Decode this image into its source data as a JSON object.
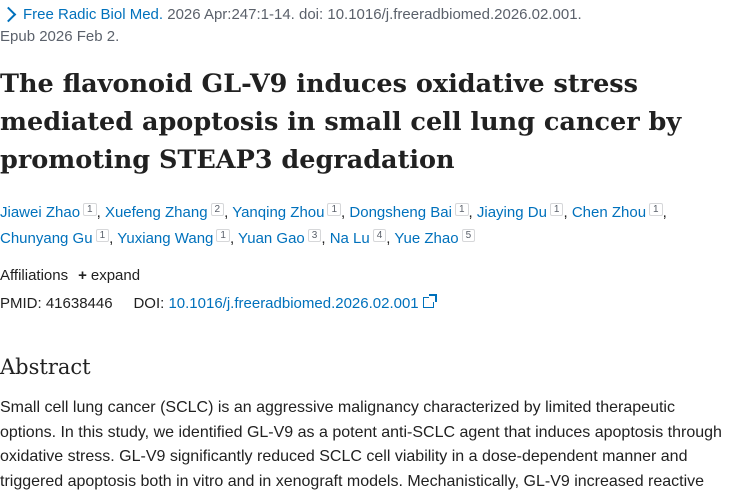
{
  "citation": {
    "journal": "Free Radic Biol Med.",
    "line1_rest": " 2026 Apr:247:1-14. doi: 10.1016/j.freeradbiomed.2026.02.001.",
    "line2": "Epub 2026 Feb 2."
  },
  "title": {
    "line1": "The flavonoid GL-V9 induces oxidative stress",
    "line2": "mediated apoptosis in small cell lung cancer by",
    "line3": "promoting STEAP3 degradation"
  },
  "authors": [
    {
      "name": "Jiawei Zhao",
      "aff": "1"
    },
    {
      "name": "Xuefeng Zhang",
      "aff": "2"
    },
    {
      "name": "Yanqing Zhou",
      "aff": "1"
    },
    {
      "name": "Dongsheng Bai",
      "aff": "1"
    },
    {
      "name": "Jiaying Du",
      "aff": "1"
    },
    {
      "name": "Chen Zhou",
      "aff": "1"
    },
    {
      "name": "Chunyang Gu",
      "aff": "1"
    },
    {
      "name": "Yuxiang Wang",
      "aff": "1"
    },
    {
      "name": "Yuan Gao",
      "aff": "3"
    },
    {
      "name": "Na Lu",
      "aff": "4"
    },
    {
      "name": "Yue Zhao",
      "aff": "5"
    }
  ],
  "affiliations": {
    "label": "Affiliations",
    "expand_label": "expand"
  },
  "identifiers": {
    "pmid_label": "PMID:",
    "pmid": "41638446",
    "doi_label": "DOI:",
    "doi": "10.1016/j.freeradbiomed.2026.02.001"
  },
  "abstract": {
    "heading": "Abstract",
    "lines": [
      "Small cell lung cancer (SCLC) is an aggressive malignancy characterized by limited therapeutic",
      "options. In this study, we identified GL-V9 as a potent anti-SCLC agent that induces apoptosis through",
      "oxidative stress. GL-V9 significantly reduced SCLC cell viability in a dose-dependent manner and",
      "triggered apoptosis both in vitro and in xenograft models. Mechanistically, GL-V9 increased reactive"
    ]
  },
  "icons": {
    "journal_nav": "chevron-right-icon",
    "expand": "plus-icon",
    "doi_external": "external-link-icon"
  },
  "colors": {
    "link": "#0071bc",
    "text": "#212121",
    "muted": "#5b616b"
  }
}
